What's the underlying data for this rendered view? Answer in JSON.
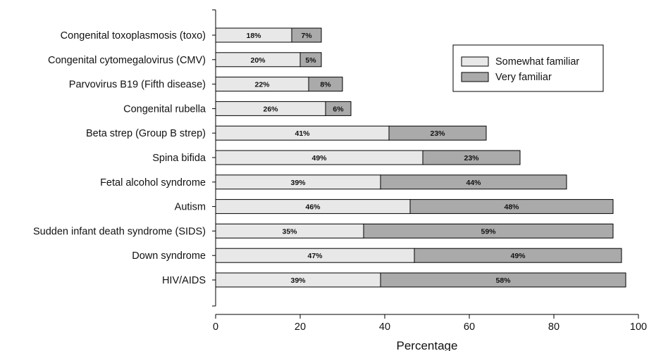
{
  "chart_data": {
    "type": "bar",
    "orientation": "horizontal",
    "stacked": true,
    "categories": [
      "Congenital toxoplasmosis (toxo)",
      "Congenital cytomegalovirus (CMV)",
      "Parvovirus B19 (Fifth disease)",
      "Congenital rubella",
      "Beta strep (Group B strep)",
      "Spina bifida",
      "Fetal alcohol syndrome",
      "Autism",
      "Sudden infant death syndrome (SIDS)",
      "Down syndrome",
      "HIV/AIDS"
    ],
    "series": [
      {
        "name": "Somewhat familiar",
        "color": "#e8e8e8",
        "values": [
          18,
          20,
          22,
          26,
          41,
          49,
          39,
          46,
          35,
          47,
          39
        ],
        "labels": [
          "18%",
          "20%",
          "22%",
          "26%",
          "41%",
          "49%",
          "39%",
          "46%",
          "35%",
          "47%",
          "39%"
        ]
      },
      {
        "name": "Very familiar",
        "color": "#aaaaaa",
        "values": [
          7,
          5,
          8,
          6,
          23,
          23,
          44,
          48,
          59,
          49,
          58
        ],
        "labels": [
          "7%",
          "5%",
          "8%",
          "6%",
          "23%",
          "23%",
          "44%",
          "48%",
          "59%",
          "49%",
          "58%"
        ]
      }
    ],
    "xlabel": "Percentage",
    "ylabel": "",
    "title": "",
    "xlim": [
      0,
      100
    ],
    "xticks": [
      0,
      20,
      40,
      60,
      80,
      100
    ],
    "grid": false,
    "legend": {
      "position": "top-right",
      "entries": [
        "Somewhat familiar",
        "Very familiar"
      ]
    }
  }
}
